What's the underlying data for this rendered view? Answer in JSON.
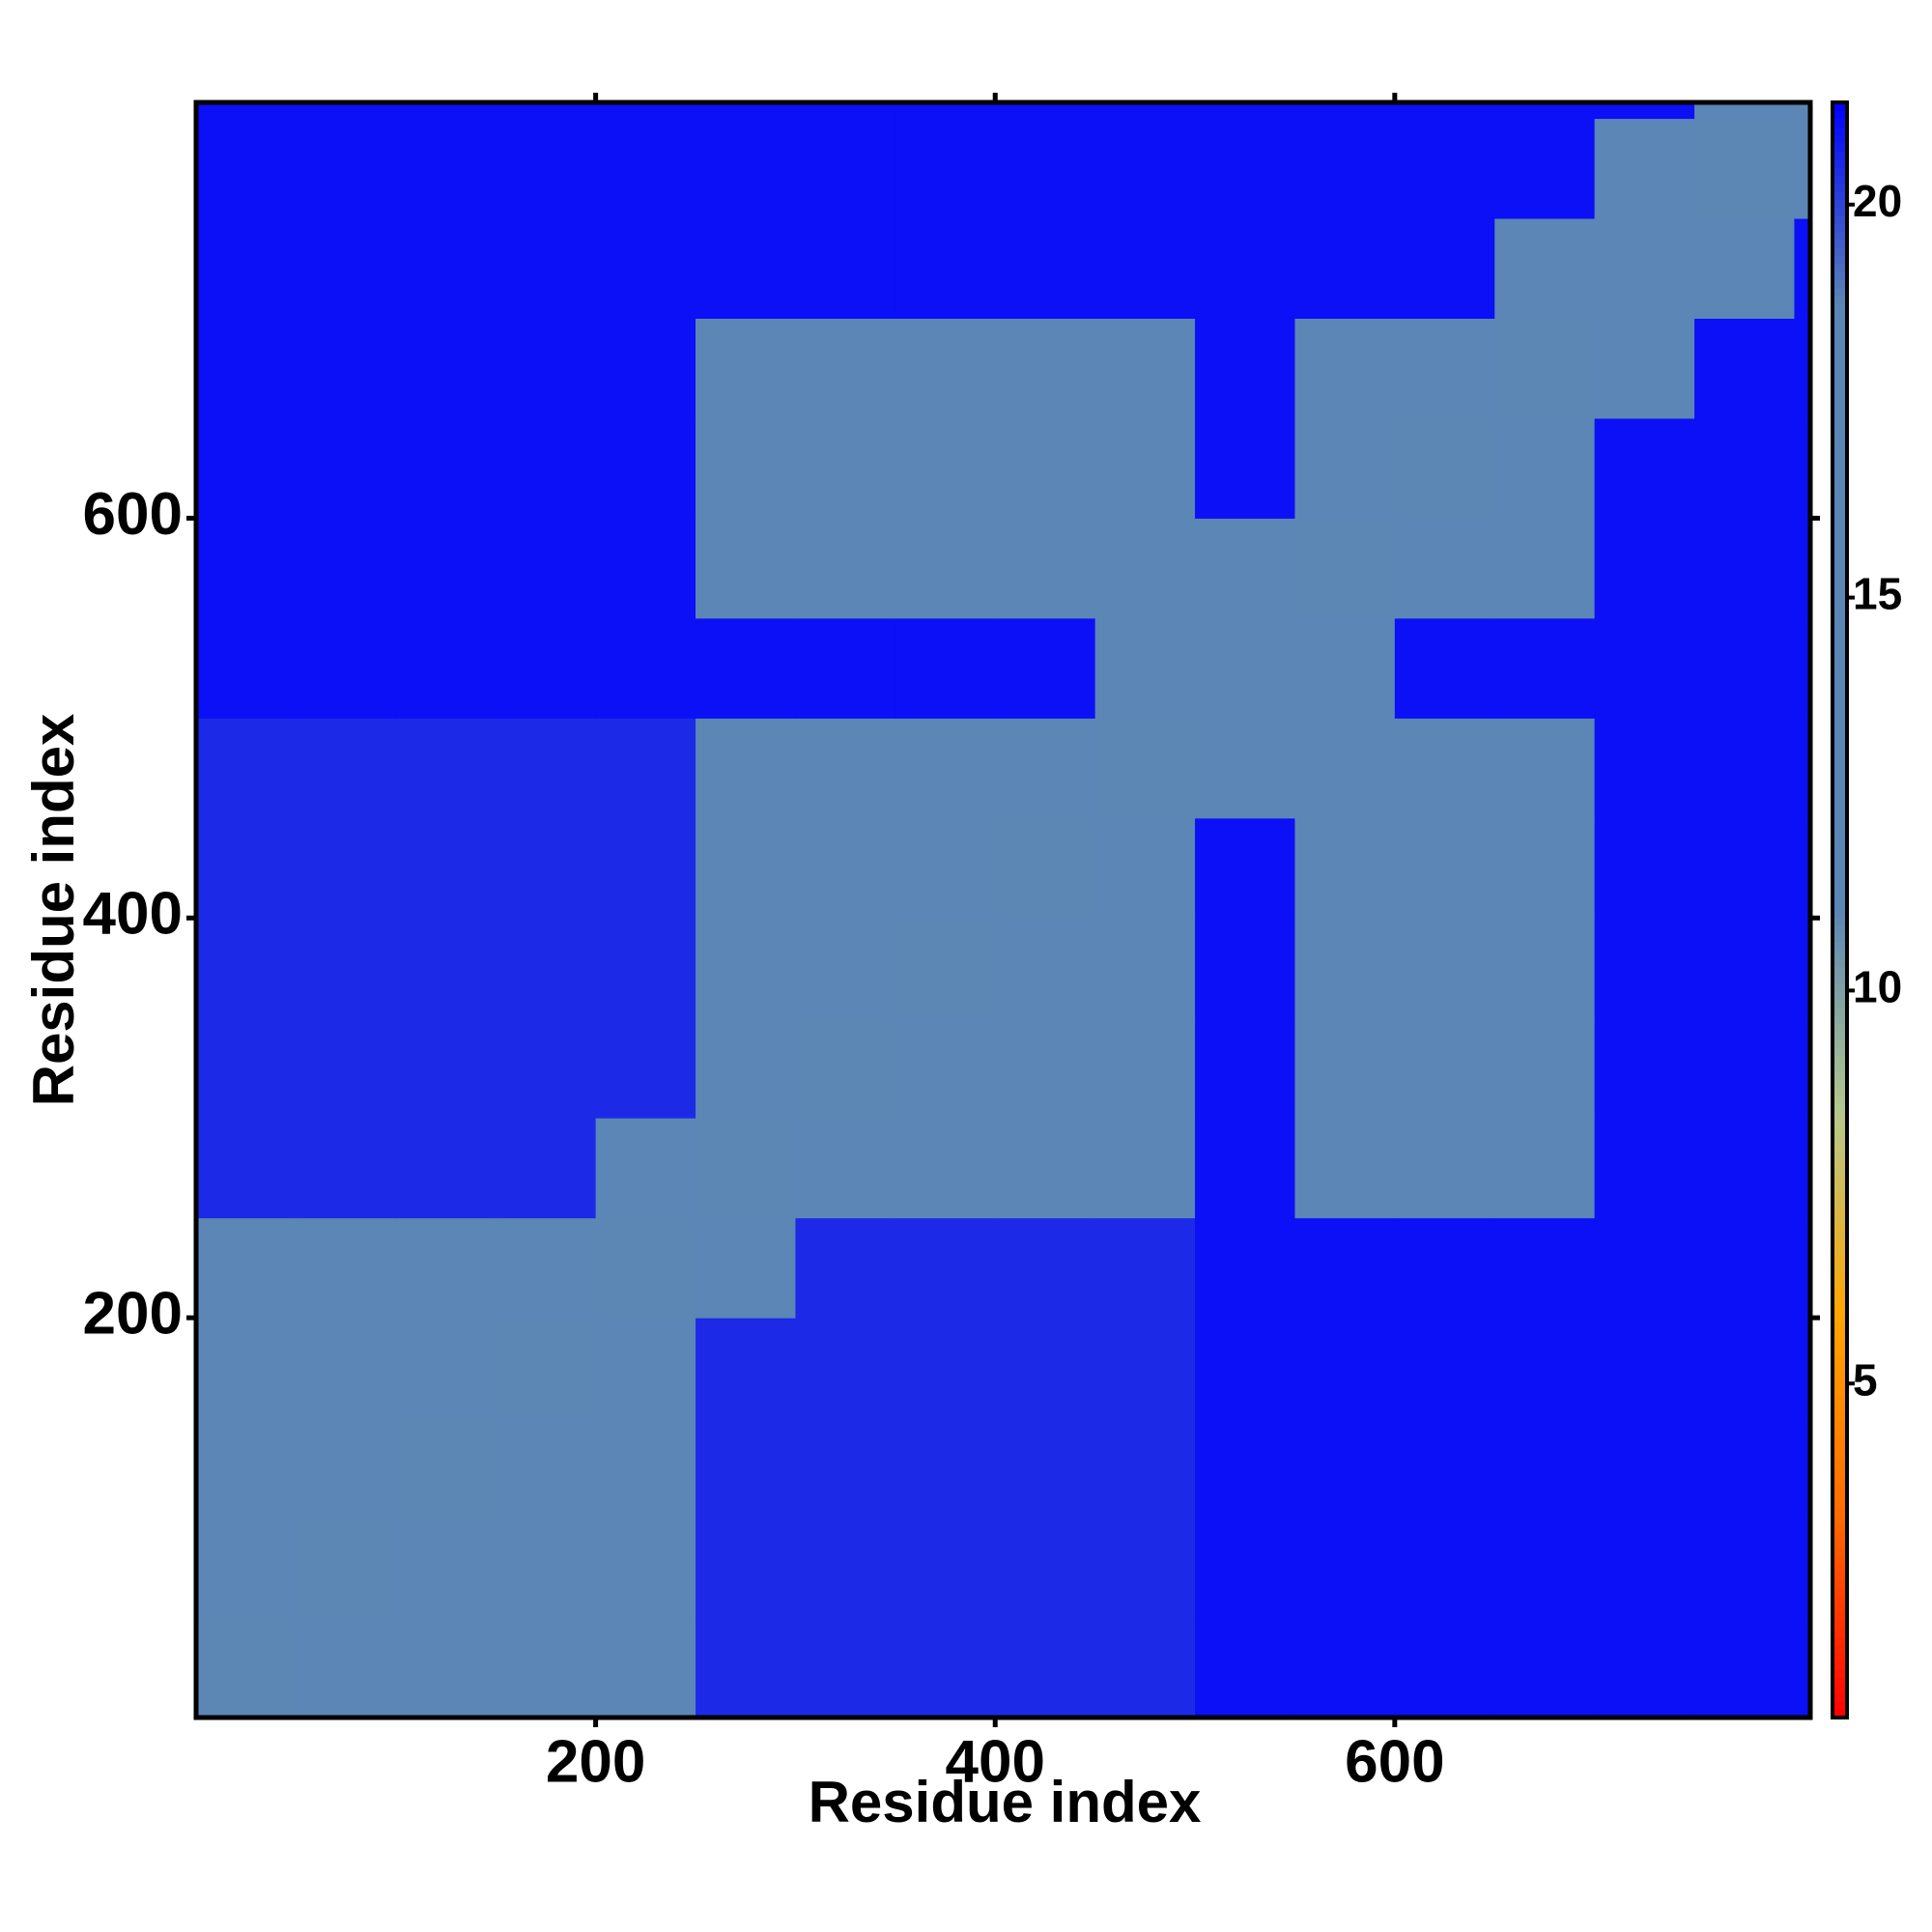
{
  "chart_data": {
    "type": "heatmap",
    "x_label": "Residue index",
    "y_label": "Residue index",
    "xbins": [
      0,
      50,
      100,
      150,
      200,
      250,
      300,
      350,
      400,
      450,
      500,
      550,
      600,
      650,
      700,
      750,
      800,
      808
    ],
    "ybins": [
      0,
      50,
      100,
      150,
      200,
      250,
      300,
      350,
      400,
      450,
      500,
      550,
      600,
      650,
      700,
      750,
      800,
      808
    ],
    "values": [
      [
        11,
        16,
        16,
        16,
        16,
        20.5,
        20.5,
        20.5,
        20.5,
        20.5,
        21,
        21,
        21,
        21,
        21,
        21,
        21
      ],
      [
        16,
        11,
        16,
        16,
        16,
        20.5,
        20.5,
        20.5,
        20.5,
        20.5,
        21,
        21,
        21,
        21,
        21,
        21,
        21
      ],
      [
        16,
        16,
        11,
        16,
        16,
        20.5,
        20.5,
        20.5,
        20.5,
        20.5,
        21,
        21,
        21,
        21,
        21,
        21,
        21
      ],
      [
        16,
        16,
        16,
        11,
        16,
        20.5,
        20.5,
        20.5,
        20.5,
        20.5,
        21,
        21,
        21,
        21,
        21,
        21,
        21
      ],
      [
        16,
        16,
        16,
        16,
        11,
        17,
        20.5,
        20.5,
        20.5,
        20.5,
        21,
        21,
        21,
        21,
        21,
        21,
        21
      ],
      [
        20.5,
        20.5,
        20.5,
        20.5,
        17,
        11,
        16,
        16,
        16,
        16,
        21,
        17.5,
        17.5,
        17.5,
        21,
        21,
        21
      ],
      [
        20.5,
        20.5,
        20.5,
        20.5,
        20.5,
        16,
        11,
        16,
        16,
        16,
        21,
        17.5,
        17.5,
        17.5,
        21,
        21,
        21
      ],
      [
        20.5,
        20.5,
        20.5,
        20.5,
        20.5,
        16,
        16,
        11,
        16,
        16,
        21,
        17.5,
        17.5,
        17.5,
        21,
        21,
        21
      ],
      [
        20.5,
        20.5,
        20.5,
        20.5,
        20.5,
        16,
        16,
        16,
        11,
        16,
        21,
        17.5,
        17.5,
        17.5,
        21,
        21,
        21
      ],
      [
        20.5,
        20.5,
        20.5,
        20.5,
        20.5,
        16,
        16,
        16,
        16,
        11,
        18,
        17.5,
        17.5,
        17.5,
        21,
        21,
        21
      ],
      [
        21,
        21,
        21,
        21,
        21,
        21,
        21,
        21,
        21,
        18,
        14,
        18,
        21,
        21,
        21,
        21,
        21
      ],
      [
        21,
        21,
        21,
        21,
        21,
        17.5,
        17.5,
        17.5,
        17.5,
        17.5,
        18,
        11,
        16,
        16,
        21,
        21,
        21
      ],
      [
        21,
        21,
        21,
        21,
        21,
        17.5,
        17.5,
        17.5,
        17.5,
        17.5,
        21,
        16,
        11,
        16,
        21,
        21,
        21
      ],
      [
        21,
        21,
        21,
        21,
        21,
        17.5,
        17.5,
        17.5,
        17.5,
        17.5,
        21,
        16,
        16,
        11,
        18,
        21,
        21
      ],
      [
        21,
        21,
        21,
        21,
        21,
        21,
        21,
        21,
        21,
        21,
        21,
        21,
        21,
        18,
        14,
        18,
        21
      ],
      [
        21,
        21,
        21,
        21,
        21,
        21,
        21,
        21,
        21,
        21,
        21,
        21,
        21,
        21,
        18,
        11,
        16
      ],
      [
        21,
        21,
        21,
        21,
        21,
        21,
        21,
        21,
        21,
        21,
        21,
        21,
        21,
        21,
        21,
        16,
        11
      ]
    ],
    "xlim": [
      0,
      808
    ],
    "ylim": [
      0,
      808
    ],
    "xticks": [
      200,
      400,
      600
    ],
    "yticks": [
      200,
      400,
      600
    ],
    "clim": [
      0.75,
      21.3
    ],
    "cticks": [
      5,
      10,
      15,
      20
    ],
    "colormap": [
      "#ff0000",
      "#ff6a00",
      "#ffa500",
      "#b4c88c",
      "#5b86b5",
      "#5b86b5",
      "#5b86b5",
      "#5b86b5",
      "#0000ff"
    ]
  }
}
